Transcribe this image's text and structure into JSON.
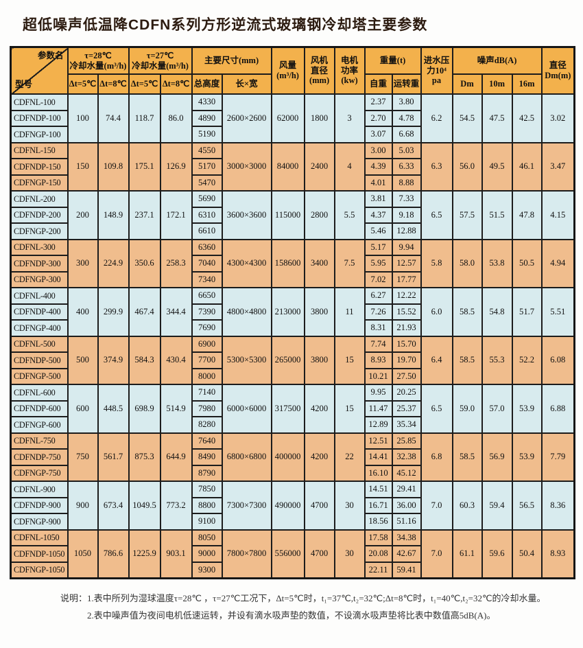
{
  "title": "超低噪声低温降CDFN系列方形逆流式玻璃钢冷却塔主要参数",
  "colors": {
    "header_bg": "#f3b14c",
    "row_blue": "#d8ebee",
    "row_orange": "#f0bd8d",
    "border": "#1c1c1c",
    "title_text": "#2c1b10"
  },
  "table": {
    "header": {
      "corner_top": "参数名",
      "corner_bottom": "型号",
      "tau28": "τ=28℃\n冷却水量(m³/h)",
      "tau27": "τ=27℃\n冷却水量(m³/h)",
      "dt5": "Δt=5℃",
      "dt8": "Δt=8℃",
      "main_size": "主要尺寸(mm)",
      "total_height": "总高度",
      "lxw": "长×宽",
      "airflow": "风量\n(m³/h)",
      "fan_dia": "风机\n直径\n(mm)",
      "motor_power": "电机\n功率\n(kw)",
      "weight": "重量(t)",
      "self_weight": "自重",
      "run_weight": "运转重",
      "pressure": "进水压\n力10⁴\npa",
      "noise": "噪声dB(A)",
      "noise_dm": "Dm",
      "noise_10m": "10m",
      "noise_16m": "16m",
      "dia": "直径\nDm(m)"
    },
    "groups": [
      {
        "color": "blue",
        "models": [
          "CDFNL-100",
          "CDFNDP-100",
          "CDFNGP-100"
        ],
        "water": [
          "100",
          "74.4",
          "118.7",
          "86.0"
        ],
        "heights": [
          "4330",
          "4890",
          "5190"
        ],
        "size": "2600×2600",
        "airflow": "62000",
        "fan_dia": "1800",
        "power": "3",
        "weights": [
          [
            "2.37",
            "3.80"
          ],
          [
            "2.70",
            "4.78"
          ],
          [
            "3.07",
            "6.68"
          ]
        ],
        "pressure": "6.2",
        "noise": [
          "54.5",
          "47.5",
          "42.5"
        ],
        "dia": "3.02"
      },
      {
        "color": "orange",
        "models": [
          "CDFNL-150",
          "CDFNDP-150",
          "CDFNGP-150"
        ],
        "water": [
          "150",
          "109.8",
          "175.1",
          "126.9"
        ],
        "heights": [
          "4550",
          "5170",
          "5470"
        ],
        "size": "3000×3000",
        "airflow": "84000",
        "fan_dia": "2400",
        "power": "4",
        "weights": [
          [
            "3.00",
            "5.03"
          ],
          [
            "4.39",
            "6.33"
          ],
          [
            "4.01",
            "8.88"
          ]
        ],
        "pressure": "6.3",
        "noise": [
          "56.0",
          "49.5",
          "46.1"
        ],
        "dia": "3.47"
      },
      {
        "color": "blue",
        "models": [
          "CDFNL-200",
          "CDFNDP-200",
          "CDFNGP-200"
        ],
        "water": [
          "200",
          "148.9",
          "237.1",
          "172.1"
        ],
        "heights": [
          "5690",
          "6310",
          "6610"
        ],
        "size": "3600×3600",
        "airflow": "115000",
        "fan_dia": "2800",
        "power": "5.5",
        "weights": [
          [
            "3.81",
            "7.33"
          ],
          [
            "4.37",
            "9.18"
          ],
          [
            "5.46",
            "12.88"
          ]
        ],
        "pressure": "6.5",
        "noise": [
          "57.5",
          "51.5",
          "47.8"
        ],
        "dia": "4.15"
      },
      {
        "color": "orange",
        "models": [
          "CDFNL-300",
          "CDFNDP-300",
          "CDFNGP-300"
        ],
        "water": [
          "300",
          "224.9",
          "350.6",
          "258.3"
        ],
        "heights": [
          "6360",
          "7040",
          "7340"
        ],
        "size": "4300×4300",
        "airflow": "158600",
        "fan_dia": "3400",
        "power": "7.5",
        "weights": [
          [
            "5.17",
            "9.94"
          ],
          [
            "5.95",
            "12.57"
          ],
          [
            "7.02",
            "17.77"
          ]
        ],
        "pressure": "5.8",
        "noise": [
          "58.0",
          "53.8",
          "50.5"
        ],
        "dia": "4.94"
      },
      {
        "color": "blue",
        "models": [
          "CDFNL-400",
          "CDFNDP-400",
          "CDFNGP-400"
        ],
        "water": [
          "400",
          "299.9",
          "467.4",
          "344.4"
        ],
        "heights": [
          "6650",
          "7390",
          "7690"
        ],
        "size": "4800×4800",
        "airflow": "213000",
        "fan_dia": "3800",
        "power": "11",
        "weights": [
          [
            "6.27",
            "12.22"
          ],
          [
            "7.26",
            "15.52"
          ],
          [
            "8.31",
            "21.93"
          ]
        ],
        "pressure": "6.0",
        "noise": [
          "58.5",
          "54.8",
          "51.7"
        ],
        "dia": "5.51"
      },
      {
        "color": "orange",
        "models": [
          "CDFNL-500",
          "CDFNDP-500",
          "CDFNGP-500"
        ],
        "water": [
          "500",
          "374.9",
          "584.3",
          "430.4"
        ],
        "heights": [
          "6900",
          "7700",
          "8000"
        ],
        "size": "5300×5300",
        "airflow": "265000",
        "fan_dia": "3800",
        "power": "15",
        "weights": [
          [
            "7.74",
            "15.70"
          ],
          [
            "8.93",
            "19.70"
          ],
          [
            "10.21",
            "27.50"
          ]
        ],
        "pressure": "6.4",
        "noise": [
          "58.5",
          "55.3",
          "52.2"
        ],
        "dia": "6.08"
      },
      {
        "color": "blue",
        "models": [
          "CDFNL-600",
          "CDFNDP-600",
          "CDFNGP-600"
        ],
        "water": [
          "600",
          "448.5",
          "698.9",
          "514.9"
        ],
        "heights": [
          "7140",
          "7980",
          "8280"
        ],
        "size": "6000×6000",
        "airflow": "317500",
        "fan_dia": "4200",
        "power": "15",
        "weights": [
          [
            "9.95",
            "20.25"
          ],
          [
            "11.47",
            "25.37"
          ],
          [
            "12.89",
            "35.34"
          ]
        ],
        "pressure": "6.5",
        "noise": [
          "59.0",
          "57.0",
          "53.9"
        ],
        "dia": "6.88"
      },
      {
        "color": "orange",
        "models": [
          "CDFNL-750",
          "CDFNDP-750",
          "CDFNGP-750"
        ],
        "water": [
          "750",
          "561.7",
          "875.3",
          "644.9"
        ],
        "heights": [
          "7640",
          "8490",
          "8790"
        ],
        "size": "6800×6800",
        "airflow": "400000",
        "fan_dia": "4200",
        "power": "22",
        "weights": [
          [
            "12.51",
            "25.85"
          ],
          [
            "14.41",
            "32.38"
          ],
          [
            "16.10",
            "45.12"
          ]
        ],
        "pressure": "6.8",
        "noise": [
          "58.5",
          "56.9",
          "53.9"
        ],
        "dia": "7.79"
      },
      {
        "color": "blue",
        "models": [
          "CDFNL-900",
          "CDFNDP-900",
          "CDFNGP-900"
        ],
        "water": [
          "900",
          "673.4",
          "1049.5",
          "773.2"
        ],
        "heights": [
          "7850",
          "8800",
          "9100"
        ],
        "size": "7300×7300",
        "airflow": "490000",
        "fan_dia": "4700",
        "power": "30",
        "weights": [
          [
            "14.51",
            "29.41"
          ],
          [
            "16.71",
            "36.00"
          ],
          [
            "18.56",
            "51.16"
          ]
        ],
        "pressure": "7.0",
        "noise": [
          "60.3",
          "59.4",
          "56.5"
        ],
        "dia": "8.36"
      },
      {
        "color": "orange",
        "models": [
          "CDFNL-1050",
          "CDFNDP-1050",
          "CDFNGP-1050"
        ],
        "water": [
          "1050",
          "786.6",
          "1225.9",
          "903.1"
        ],
        "heights": [
          "8050",
          "9000",
          "9300"
        ],
        "size": "7800×7800",
        "airflow": "556000",
        "fan_dia": "4700",
        "power": "30",
        "weights": [
          [
            "17.58",
            "34.38"
          ],
          [
            "20.08",
            "42.67"
          ],
          [
            "22.11",
            "59.41"
          ]
        ],
        "pressure": "7.0",
        "noise": [
          "61.1",
          "59.6",
          "50.4"
        ],
        "dia": "8.93"
      }
    ]
  },
  "notes": {
    "label": "说明：",
    "line1": "1.表中所列为湿球温度τ=28℃ ，τ=27℃工况下，Δt=5℃时，t₁=37℃,t₂=32℃;Δt=8℃时，t₁=40℃,t₂=32℃的冷却水量。",
    "line2": "2.表中噪声值为夜间电机低速运转，并设有滴水吸声垫的数值，不设滴水吸声垫将比表中数值高5dB(A)。"
  }
}
